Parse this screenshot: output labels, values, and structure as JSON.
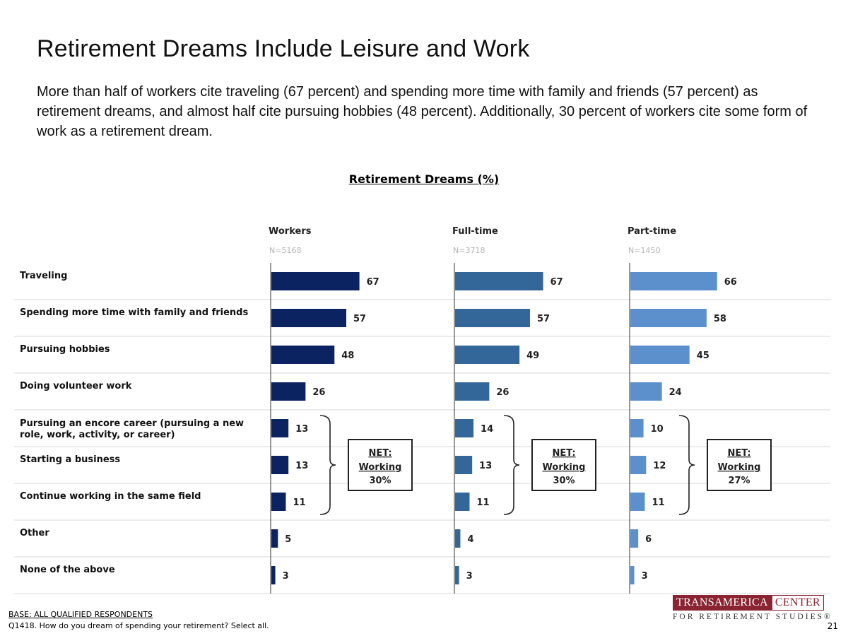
{
  "page": {
    "title": "Retirement Dreams Include Leisure and Work",
    "subtitle": "More than half of workers cite traveling (67 percent) and spending more time with family and friends (57 percent) as retirement dreams, and almost half cite pursuing hobbies (48 percent). Additionally, 30 percent of workers cite some form of work as a retirement dream.",
    "footer_base": "BASE: ALL QUALIFIED RESPONDENTS",
    "footer_question": "Q1418. How do you dream of spending your retirement? Select all.",
    "page_number": "21",
    "logo_line1a": "TRANSAMERICA",
    "logo_line1b": "CENTER",
    "logo_line2": "FOR RETIREMENT STUDIES®"
  },
  "chart_data": {
    "type": "bar",
    "orientation": "horizontal",
    "title": "Retirement Dreams (%)",
    "categories": [
      "Traveling",
      "Spending more time with family and friends",
      "Pursuing hobbies",
      "Doing volunteer work",
      "Pursuing an encore career (pursuing a new role, work, activity, or career)",
      "Starting a business",
      "Continue working in the same field",
      "Other",
      "None of the above"
    ],
    "series": [
      {
        "name": "Workers",
        "n": "N=5168",
        "color": "#0b2361",
        "values": [
          67,
          57,
          48,
          26,
          13,
          13,
          11,
          5,
          3
        ],
        "net_label": "NET:",
        "net_label2": "Working",
        "net_value": "30%"
      },
      {
        "name": "Full-time",
        "n": "N=3718",
        "color": "#336699",
        "values": [
          67,
          57,
          49,
          26,
          14,
          13,
          11,
          4,
          3
        ],
        "net_label": "NET:",
        "net_label2": "Working",
        "net_value": "30%"
      },
      {
        "name": "Part-time",
        "n": "N=1450",
        "color": "#5b90cc",
        "values": [
          66,
          58,
          45,
          24,
          10,
          12,
          11,
          6,
          3
        ],
        "net_label": "NET:",
        "net_label2": "Working",
        "net_value": "27%"
      }
    ],
    "net_bracket_rows": [
      4,
      6
    ],
    "xlim": [
      0,
      100
    ]
  }
}
